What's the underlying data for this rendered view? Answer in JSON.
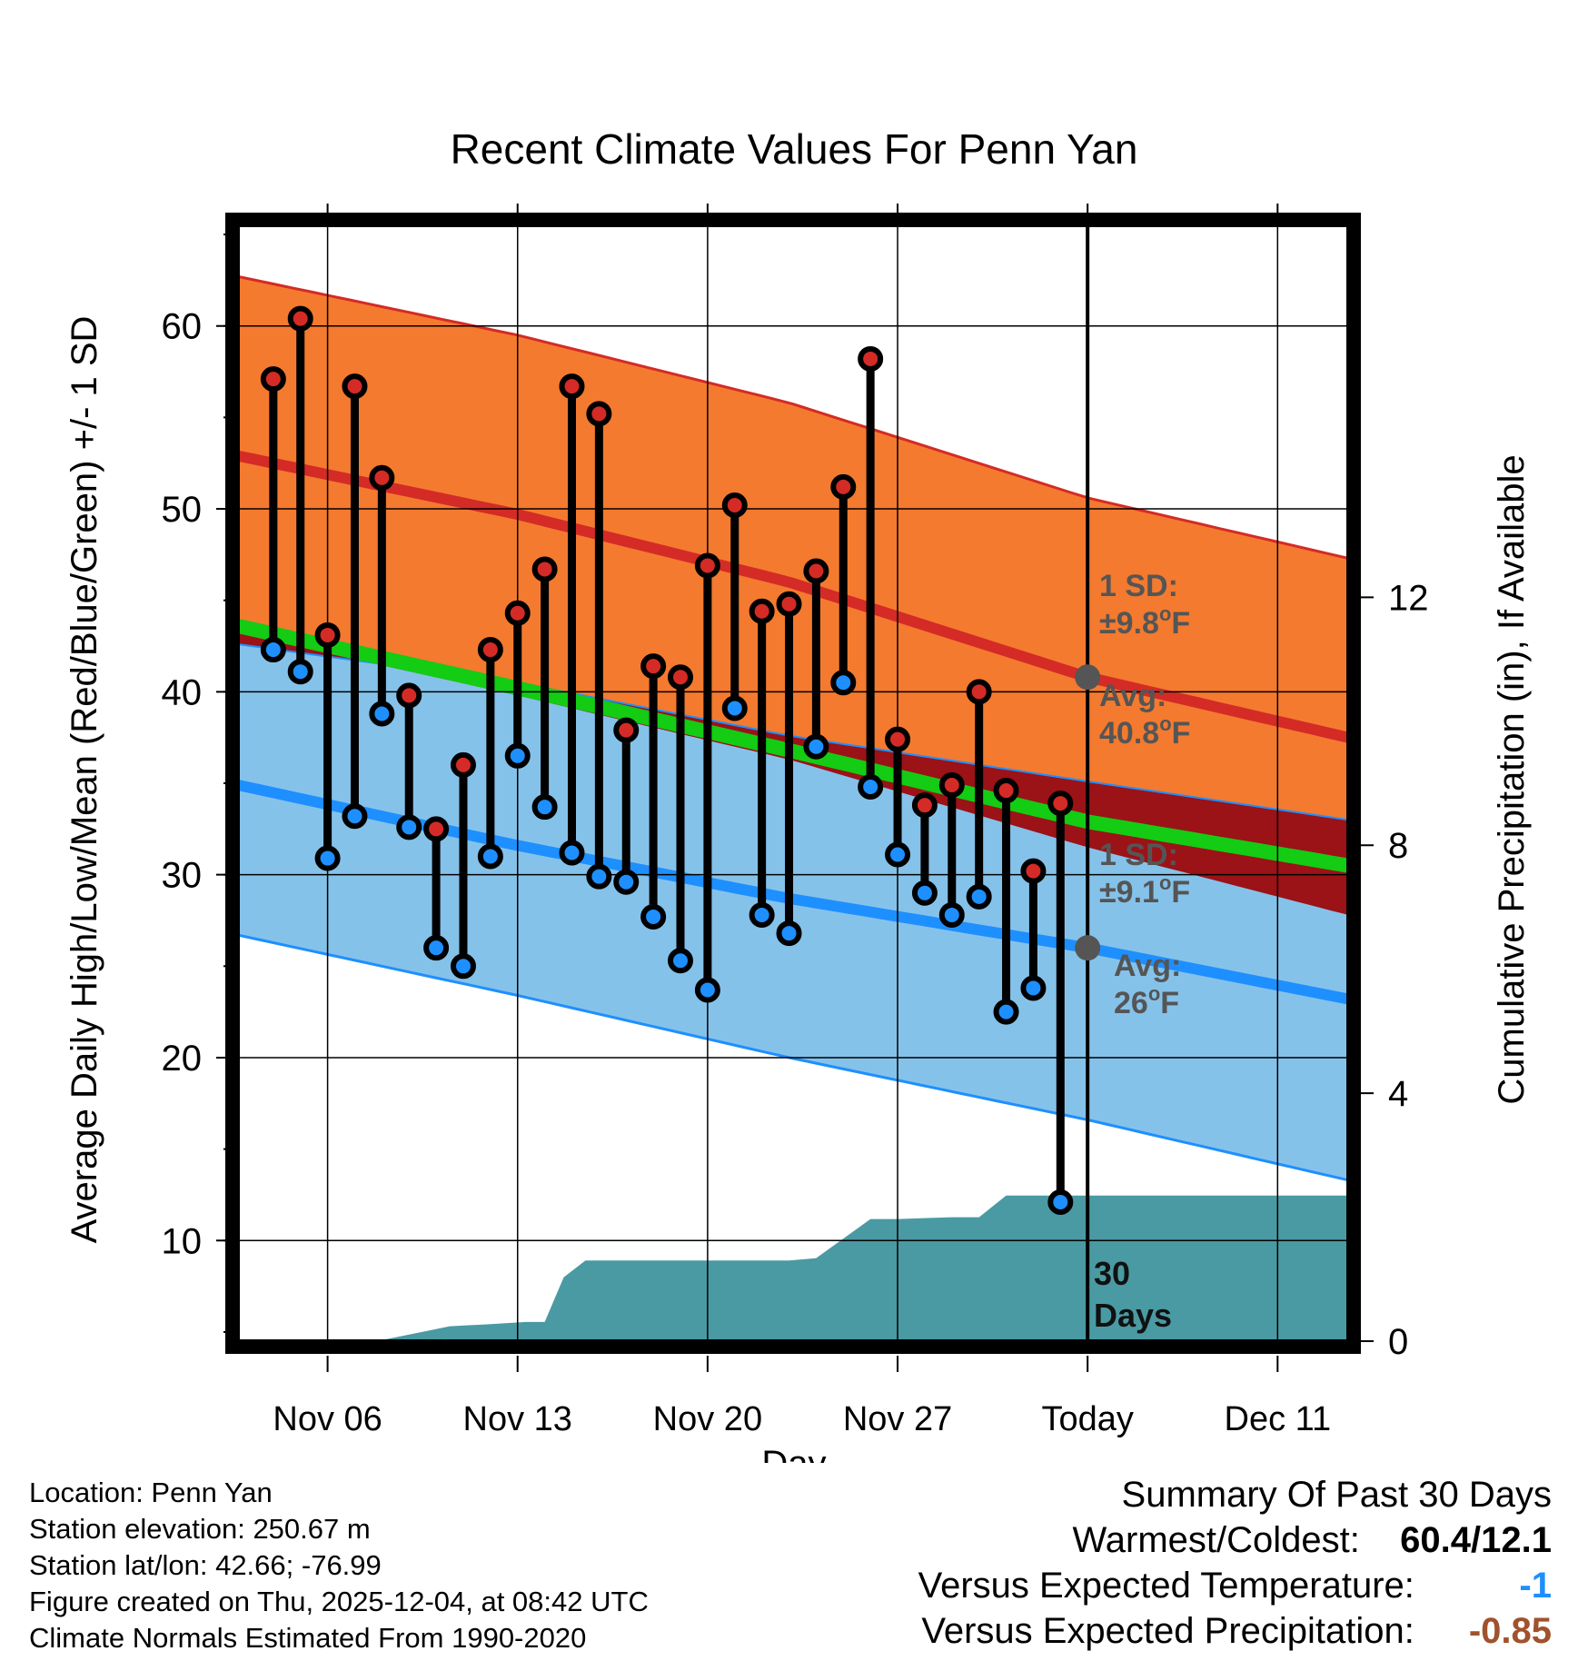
{
  "chart_data": {
    "type": "line",
    "title": "Recent Climate Values For Penn Yan",
    "xlabel": "Day",
    "ylabel": "Average Daily High/Low/Mean (Red/Blue/Green) +/- 1 SD",
    "y2label": "Cumulative Precipitation (in), If Available",
    "ylim": [
      4.5,
      65.5
    ],
    "y2lim": [
      0,
      18
    ],
    "xlim": [
      -0.3,
      40.6
    ],
    "x_ticks": [
      {
        "day": 3,
        "label": "Nov 06"
      },
      {
        "day": 10,
        "label": "Nov 13"
      },
      {
        "day": 17,
        "label": "Nov 20"
      },
      {
        "day": 24,
        "label": "Nov 27"
      },
      {
        "day": 31,
        "label": "Today"
      },
      {
        "day": 38,
        "label": "Dec 11"
      }
    ],
    "y_ticks": [
      "10",
      "20",
      "30",
      "40",
      "50",
      "60"
    ],
    "y2_ticks": [
      "0",
      "4",
      "8",
      "12"
    ],
    "today_day": 31,
    "normals": {
      "x": [
        -0.3,
        10,
        20,
        31,
        40.6
      ],
      "high_avg": [
        52.9,
        49.7,
        46.0,
        40.8,
        37.5
      ],
      "high_upper": [
        62.7,
        59.5,
        55.8,
        50.6,
        47.3
      ],
      "low_avg": [
        34.9,
        31.6,
        28.7,
        26.0,
        23.2
      ],
      "low_upper": [
        42.6,
        40.5,
        37.6,
        35.1,
        33.0
      ],
      "low_lower": [
        26.7,
        23.4,
        20.0,
        16.6,
        13.3
      ],
      "mean_avg": [
        43.6,
        40.2,
        36.8,
        32.9,
        30.5
      ],
      "high_lower": [
        43.2,
        39.8,
        36.3,
        31.5,
        27.8
      ]
    },
    "observations": [
      {
        "day": 1,
        "high": 57.1,
        "low": 42.3
      },
      {
        "day": 2,
        "high": 60.4,
        "low": 41.1
      },
      {
        "day": 3,
        "high": 43.1,
        "low": 30.9
      },
      {
        "day": 4,
        "high": 56.7,
        "low": 33.2
      },
      {
        "day": 5,
        "high": 51.7,
        "low": 38.8
      },
      {
        "day": 6,
        "high": 39.8,
        "low": 32.6
      },
      {
        "day": 7,
        "high": 32.5,
        "low": 26.0
      },
      {
        "day": 8,
        "high": 36.0,
        "low": 25.0
      },
      {
        "day": 9,
        "high": 42.3,
        "low": 31.0
      },
      {
        "day": 10,
        "high": 44.3,
        "low": 36.5
      },
      {
        "day": 11,
        "high": 46.7,
        "low": 33.7
      },
      {
        "day": 12,
        "high": 56.7,
        "low": 31.2
      },
      {
        "day": 13,
        "high": 55.2,
        "low": 29.9
      },
      {
        "day": 14,
        "high": 37.9,
        "low": 29.6
      },
      {
        "day": 15,
        "high": 41.4,
        "low": 27.7
      },
      {
        "day": 16,
        "high": 40.8,
        "low": 25.3
      },
      {
        "day": 17,
        "high": 46.9,
        "low": 23.7
      },
      {
        "day": 18,
        "high": 50.2,
        "low": 39.1
      },
      {
        "day": 19,
        "high": 44.4,
        "low": 27.8
      },
      {
        "day": 20,
        "high": 44.8,
        "low": 26.8
      },
      {
        "day": 21,
        "high": 46.6,
        "low": 37.0
      },
      {
        "day": 22,
        "high": 51.2,
        "low": 40.5
      },
      {
        "day": 23,
        "high": 58.2,
        "low": 34.8
      },
      {
        "day": 24,
        "high": 37.4,
        "low": 31.1
      },
      {
        "day": 25,
        "high": 33.8,
        "low": 29.0
      },
      {
        "day": 26,
        "high": 34.9,
        "low": 27.8
      },
      {
        "day": 27,
        "high": 40.0,
        "low": 28.8
      },
      {
        "day": 28,
        "high": 34.6,
        "low": 22.5
      },
      {
        "day": 29,
        "high": 30.2,
        "low": 23.8
      },
      {
        "day": 30,
        "high": 33.9,
        "low": 12.1
      }
    ],
    "precipitation": {
      "day": [
        -0.3,
        4.8,
        6.6,
        7.5,
        8.8,
        10.3,
        11.0,
        11.7,
        12.5,
        20.0,
        21.0,
        23.0,
        24.0,
        26.0,
        27.0,
        28.0,
        40.6
      ],
      "value": [
        0,
        0,
        0.16,
        0.24,
        0.27,
        0.31,
        0.31,
        1.03,
        1.3,
        1.3,
        1.34,
        1.97,
        1.97,
        2.0,
        2.0,
        2.35,
        2.35
      ]
    },
    "annotations": {
      "high_sd": {
        "line1": "1 SD:",
        "line2": "±9.8°F"
      },
      "high_avg": {
        "line1": "Avg:",
        "line2": "40.8°F"
      },
      "low_sd": {
        "line1": "1 SD:",
        "line2": "±9.1°F"
      },
      "low_avg": {
        "line1": "Avg:",
        "line2": "26°F"
      },
      "days": {
        "line1": "30",
        "line2": "Days"
      }
    },
    "colors": {
      "high_band": "#f47a2f",
      "high_line": "#d42b26",
      "low_band": "#85c2ea",
      "low_line": "#1e8fff",
      "mean_line": "#13cc13",
      "overlap": "#9b1217",
      "precip": "#4a9aa3",
      "annotation": "#555555"
    }
  },
  "footer": {
    "location": "Location: Penn Yan",
    "elevation": "Station elevation: 250.67 m",
    "latlon": "Station lat/lon: 42.66; -76.99",
    "created": "Figure created on Thu, 2025-12-04, at 08:42 UTC",
    "normals": "Climate Normals Estimated From 1990-2020"
  },
  "summary": {
    "title": "Summary Of Past 30 Days",
    "warm_cold_label": "Warmest/Coldest:",
    "warm_cold_value": "60.4/12.1",
    "temp_label": "Versus Expected Temperature:",
    "temp_value": "-1",
    "temp_color": "#1e8fff",
    "precip_label": "Versus Expected Precipitation:",
    "precip_value": "-0.85",
    "precip_color": "#a0522d"
  }
}
